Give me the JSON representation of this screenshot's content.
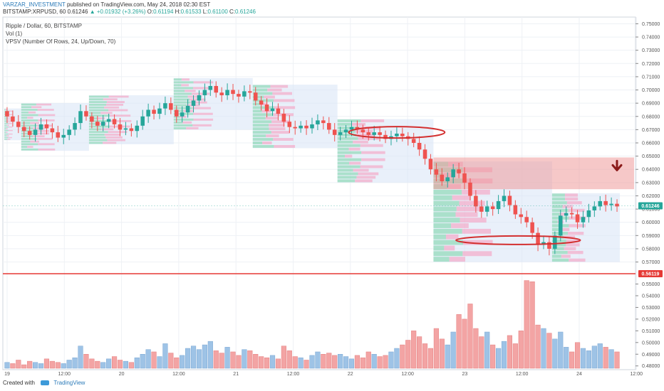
{
  "header": {
    "author": "VARZAR_INVESTMENT",
    "published": "published on TradingView.com, May 24, 2018 02:30 EST",
    "symbol": "BITSTAMP:XRPUSD, 60",
    "last": "0.61246",
    "change": "+0.01932 (+3.26%)",
    "o_label": "O:",
    "o": "0.61194",
    "h_label": "H:",
    "h": "0.61533",
    "l_label": "L:",
    "l": "0.61100",
    "c_label": "C:",
    "c": "0.61246"
  },
  "legend": {
    "line1": "Ripple / Dollar, 60, BITSTAMP",
    "line2": "Vol (1)",
    "line3": "VPSV (Number Of Rows, 24, Up/Down, 70)"
  },
  "footer": {
    "created_with": "Created with",
    "brand": "TradingView"
  },
  "colors": {
    "up": "#26a69a",
    "down": "#ef5350",
    "support_line": "#e53935",
    "resistance_zone": "#ef9a9a",
    "profile_box": "#dbe6f7",
    "arrow": "#8b1a1a"
  },
  "chart_data": {
    "type": "candlestick",
    "x_tick_labels": [
      "19",
      "12:00",
      "20",
      "12:00",
      "21",
      "12:00",
      "22",
      "12:00",
      "23",
      "12:00",
      "24",
      "12:00"
    ],
    "price_axis": {
      "ticks": [
        "0.75000",
        "0.74000",
        "0.73000",
        "0.72000",
        "0.71000",
        "0.70000",
        "0.69000",
        "0.68000",
        "0.67000",
        "0.66000",
        "0.65000",
        "0.64000",
        "0.63000",
        "0.62000",
        "0.61000",
        "0.60000",
        "0.59000",
        "0.58000",
        "0.57000"
      ],
      "range": [
        0.566,
        0.754
      ]
    },
    "volume_axis": {
      "ticks": [
        "0.55000",
        "0.54000",
        "0.53000",
        "0.52000",
        "0.51000",
        "0.50000",
        "0.49000",
        "0.48000"
      ],
      "range": [
        0.478,
        0.557
      ]
    },
    "last_price_label": "0.61246",
    "horizontal_line": {
      "value": 0.56119,
      "label": "0.56119"
    },
    "resistance_zone": {
      "from": 0.625,
      "to": 0.649
    },
    "closes": [
      0.68,
      0.676,
      0.672,
      0.669,
      0.666,
      0.67,
      0.674,
      0.671,
      0.668,
      0.664,
      0.666,
      0.67,
      0.675,
      0.684,
      0.68,
      0.676,
      0.673,
      0.676,
      0.678,
      0.674,
      0.67,
      0.671,
      0.669,
      0.673,
      0.68,
      0.685,
      0.682,
      0.686,
      0.69,
      0.685,
      0.68,
      0.683,
      0.688,
      0.692,
      0.696,
      0.7,
      0.703,
      0.698,
      0.696,
      0.7,
      0.697,
      0.695,
      0.699,
      0.698,
      0.692,
      0.689,
      0.684,
      0.686,
      0.682,
      0.676,
      0.672,
      0.671,
      0.673,
      0.671,
      0.674,
      0.677,
      0.675,
      0.67,
      0.666,
      0.668,
      0.67,
      0.672,
      0.67,
      0.668,
      0.666,
      0.668,
      0.666,
      0.663,
      0.665,
      0.667,
      0.665,
      0.663,
      0.66,
      0.655,
      0.648,
      0.64,
      0.636,
      0.631,
      0.634,
      0.64,
      0.637,
      0.63,
      0.62,
      0.612,
      0.608,
      0.612,
      0.61,
      0.616,
      0.62,
      0.613,
      0.606,
      0.604,
      0.6,
      0.592,
      0.583,
      0.585,
      0.58,
      0.59,
      0.605,
      0.607,
      0.606,
      0.6,
      0.604,
      0.609,
      0.612,
      0.616,
      0.613,
      0.614,
      0.612
    ],
    "volumes": [
      0.483,
      0.482,
      0.485,
      0.481,
      0.484,
      0.483,
      0.482,
      0.486,
      0.484,
      0.483,
      0.482,
      0.485,
      0.487,
      0.497,
      0.49,
      0.486,
      0.484,
      0.483,
      0.486,
      0.488,
      0.485,
      0.484,
      0.483,
      0.487,
      0.49,
      0.494,
      0.492,
      0.488,
      0.499,
      0.491,
      0.487,
      0.489,
      0.495,
      0.497,
      0.494,
      0.498,
      0.501,
      0.493,
      0.491,
      0.496,
      0.492,
      0.489,
      0.494,
      0.493,
      0.49,
      0.488,
      0.487,
      0.489,
      0.486,
      0.497,
      0.493,
      0.488,
      0.487,
      0.485,
      0.489,
      0.492,
      0.49,
      0.491,
      0.489,
      0.49,
      0.488,
      0.486,
      0.489,
      0.487,
      0.492,
      0.49,
      0.488,
      0.489,
      0.492,
      0.495,
      0.498,
      0.502,
      0.51,
      0.505,
      0.499,
      0.495,
      0.512,
      0.503,
      0.498,
      0.509,
      0.524,
      0.52,
      0.533,
      0.512,
      0.505,
      0.509,
      0.498,
      0.495,
      0.501,
      0.506,
      0.499,
      0.51,
      0.553,
      0.552,
      0.515,
      0.512,
      0.508,
      0.503,
      0.509,
      0.496,
      0.492,
      0.5,
      0.495,
      0.493,
      0.497,
      0.499,
      0.496,
      0.494,
      0.492
    ]
  }
}
